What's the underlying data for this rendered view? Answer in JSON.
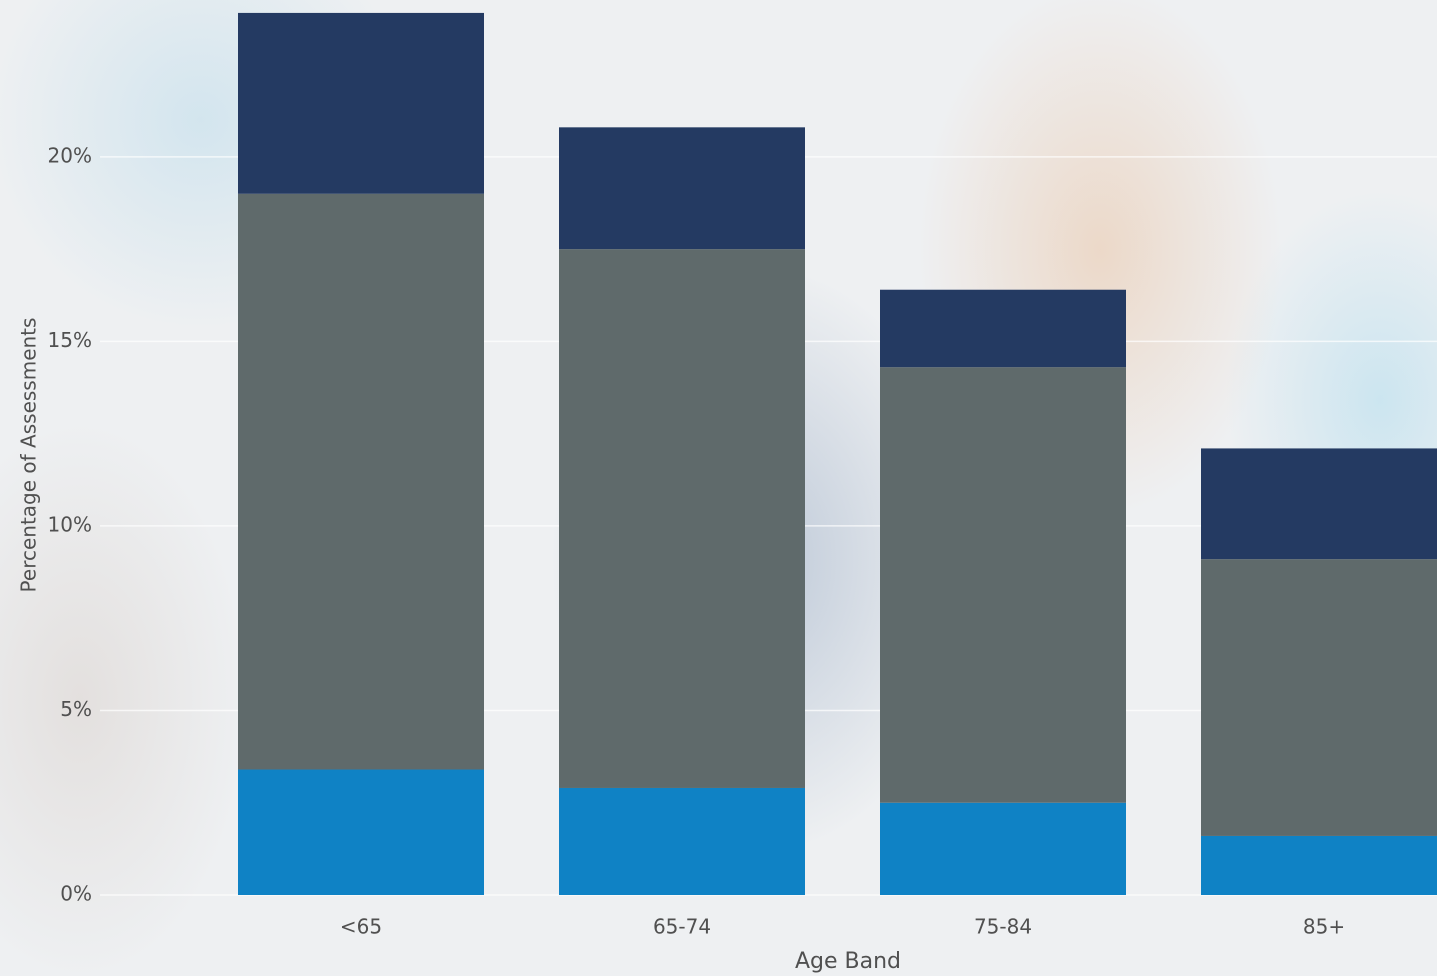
{
  "chart_data": {
    "type": "stacked_bar",
    "x_label": "Age Band",
    "y_label": "Percentage of Assessments",
    "categories": [
      "<65",
      "65-74",
      "75-84",
      "85+"
    ],
    "series": [
      {
        "color": "#0f82c5",
        "values": [
          3.4,
          2.9,
          2.5,
          1.6
        ]
      },
      {
        "color": "#5f6a6b",
        "values": [
          15.6,
          14.6,
          11.8,
          7.5
        ]
      },
      {
        "color": "#243a62",
        "values": [
          4.9,
          3.3,
          2.1,
          3.0
        ]
      }
    ],
    "ylim": [
      0,
      24.25
    ],
    "yticks": [
      {
        "value": 0,
        "label": "0%"
      },
      {
        "value": 5,
        "label": "5%"
      },
      {
        "value": 10,
        "label": "10%"
      },
      {
        "value": 15,
        "label": "15%"
      },
      {
        "value": 20,
        "label": "20%"
      }
    ],
    "grid": true
  }
}
